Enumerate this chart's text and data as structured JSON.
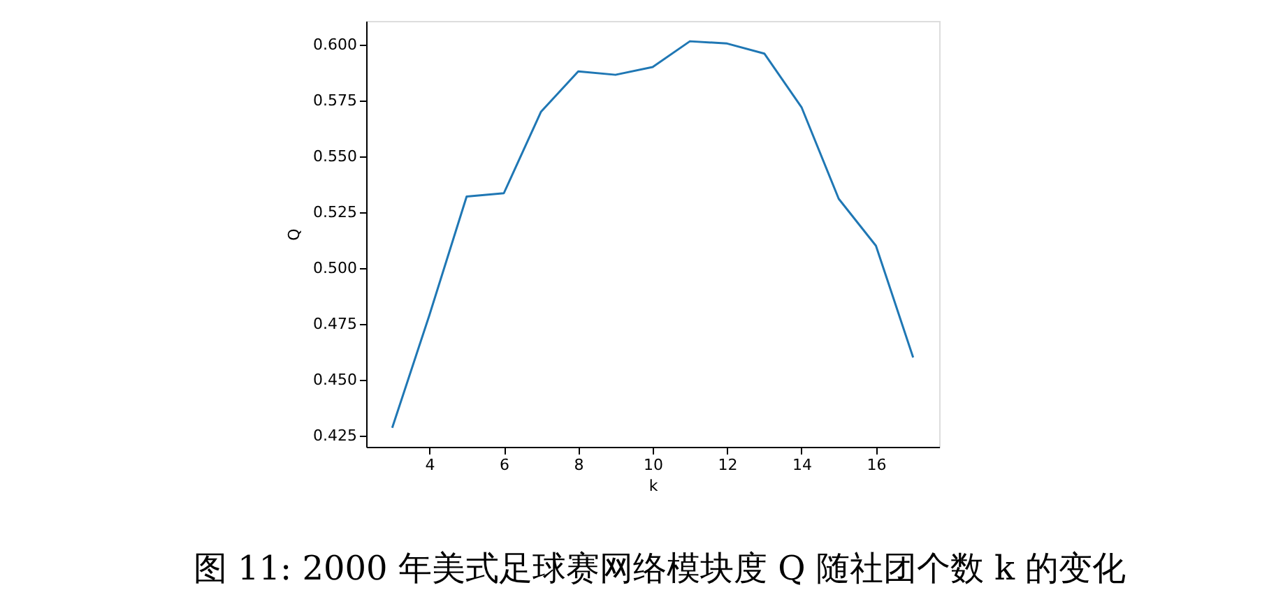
{
  "chart_data": {
    "type": "line",
    "xlabel": "k",
    "ylabel": "Q",
    "x": [
      3,
      4,
      5,
      6,
      7,
      8,
      9,
      10,
      11,
      12,
      13,
      14,
      15,
      16,
      17
    ],
    "series": [
      {
        "color": "#1f77b4",
        "values": [
          0.4285,
          0.479,
          0.532,
          0.5335,
          0.57,
          0.588,
          0.5865,
          0.59,
          0.6015,
          0.6005,
          0.596,
          0.572,
          0.531,
          0.51,
          0.46
        ]
      }
    ],
    "xlim": [
      2.3,
      17.7
    ],
    "ylim": [
      0.42,
      0.6106
    ],
    "xticks": [
      4,
      6,
      8,
      10,
      12,
      14,
      16
    ],
    "yticks": [
      {
        "value": 0.425,
        "label": "0.425"
      },
      {
        "value": 0.45,
        "label": "0.450"
      },
      {
        "value": 0.475,
        "label": "0.475"
      },
      {
        "value": 0.5,
        "label": "0.500"
      },
      {
        "value": 0.525,
        "label": "0.525"
      },
      {
        "value": 0.55,
        "label": "0.550"
      },
      {
        "value": 0.575,
        "label": "0.575"
      },
      {
        "value": 0.6,
        "label": "0.600"
      }
    ],
    "grid": false,
    "marker": "none",
    "line_style": "solid",
    "annotations": [
      "图 11: 2000 年美式足球赛网络模块度 Q 随社团个数 k 的变化"
    ]
  }
}
